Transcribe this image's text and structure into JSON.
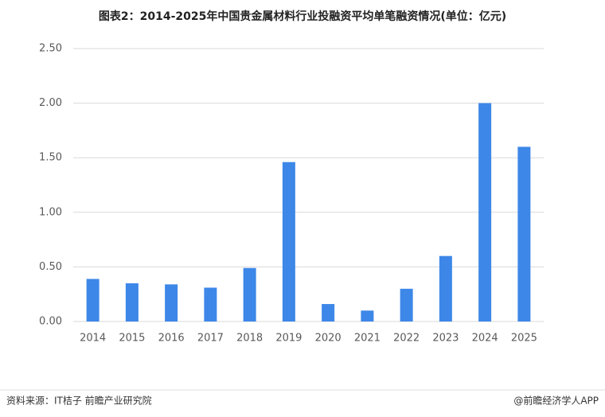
{
  "chart_data": {
    "type": "bar",
    "title": "图表2：2014-2025年中国贵金属材料行业投融资平均单笔融资情况(单位：亿元)",
    "categories": [
      "2014",
      "2015",
      "2016",
      "2017",
      "2018",
      "2019",
      "2020",
      "2021",
      "2022",
      "2023",
      "2024",
      "2025"
    ],
    "values": [
      0.39,
      0.35,
      0.34,
      0.31,
      0.49,
      1.46,
      0.16,
      0.1,
      0.3,
      0.6,
      2.0,
      1.6
    ],
    "color": "#3d87e8",
    "ylim": [
      0,
      2.5
    ],
    "yticks": [
      {
        "value": 0,
        "label": "0.00"
      },
      {
        "value": 0.5,
        "label": "0.50"
      },
      {
        "value": 1,
        "label": "1.00"
      },
      {
        "value": 1.5,
        "label": "1.50"
      },
      {
        "value": 2,
        "label": "2.00"
      },
      {
        "value": 2.5,
        "label": "2.50"
      }
    ],
    "grid": true,
    "source": "资料来源：IT桔子 前瞻产业研究院",
    "credit": "@前瞻经济学人APP"
  }
}
